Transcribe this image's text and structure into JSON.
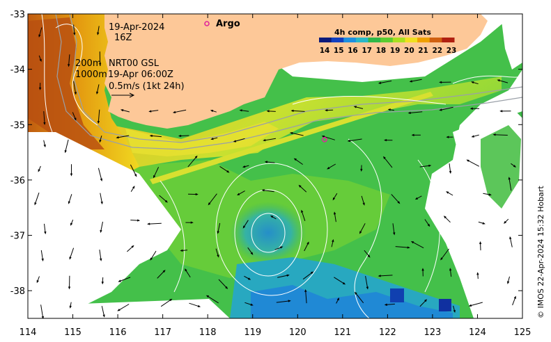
{
  "map": {
    "axes": {
      "lon_ticks": [
        "114",
        "115",
        "116",
        "117",
        "118",
        "119",
        "120",
        "121",
        "122",
        "123",
        "124",
        "125"
      ],
      "lat_ticks": [
        "-33",
        "-34",
        "-35",
        "-36",
        "-37",
        "-38"
      ],
      "lon_range": [
        114,
        125
      ],
      "lat_range": [
        -38.5,
        -33
      ]
    },
    "annotations": {
      "date": "19-Apr-2024",
      "hour": "16Z",
      "isobath_200": "200m",
      "isobath_1000": "1000m",
      "product": "NRT00 GSL",
      "current_time": "19-Apr 06:00Z",
      "scale_vector": "0.5m/s (1kt 24h)"
    },
    "legend": {
      "argo_label": "Argo",
      "argo_color": "#e0289b"
    },
    "colorbar": {
      "title": "4h comp, p50, All Sats",
      "labels": [
        "14",
        "15",
        "16",
        "17",
        "18",
        "19",
        "20",
        "21",
        "22",
        "23"
      ],
      "colors": [
        "#0a1a7a",
        "#1240c0",
        "#1e90e0",
        "#2ab8c8",
        "#30b848",
        "#5ccc30",
        "#a8e020",
        "#f0e020",
        "#f0a000",
        "#d06010",
        "#b02010"
      ]
    },
    "argo_float": {
      "lon": 120.6,
      "lat": -35.27
    },
    "credit": "© IMOS 22-Apr-2024 15:32 Hobart",
    "colors": {
      "land": "#fdc898",
      "no_data": "#ffffff"
    }
  }
}
